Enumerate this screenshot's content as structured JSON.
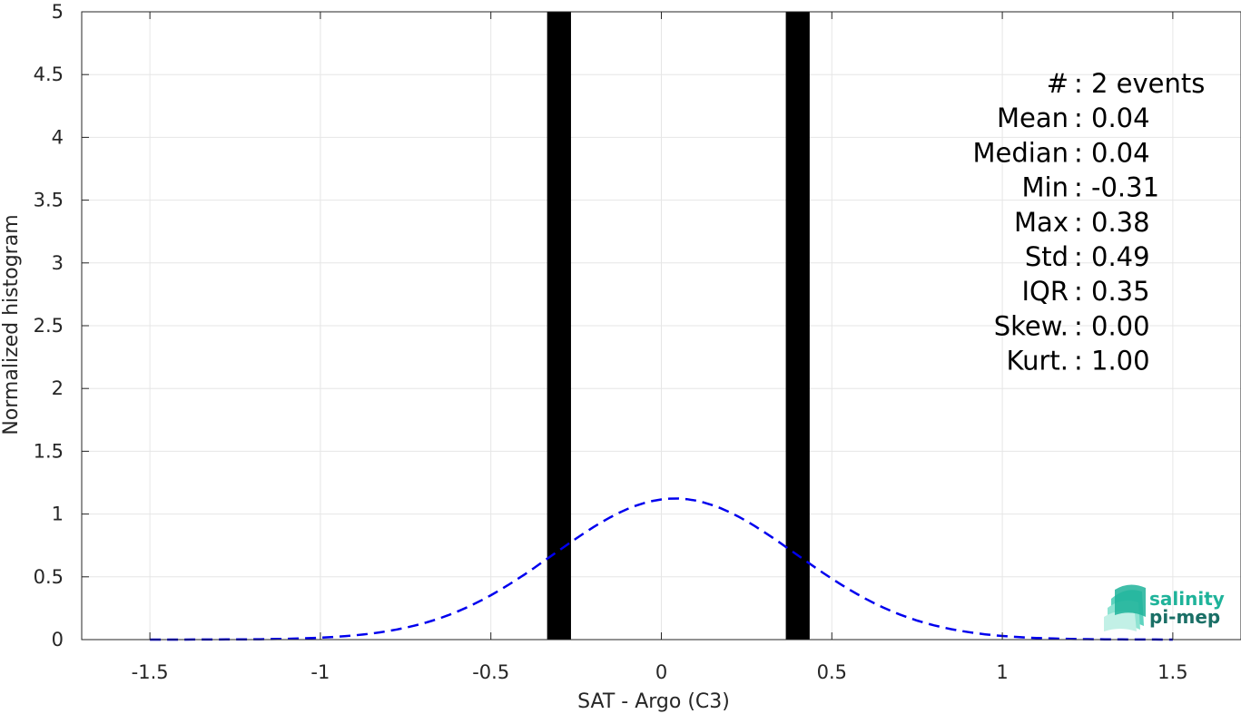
{
  "chart_data": {
    "type": "bar",
    "xlabel": "SAT - Argo (C3)",
    "ylabel": "Normalized histogram",
    "xlim": [
      -1.7,
      1.7
    ],
    "ylim": [
      0,
      5
    ],
    "xticks": [
      -1.5,
      -1,
      -0.5,
      0,
      0.5,
      1,
      1.5
    ],
    "xtick_labels": [
      "-1.5",
      "-1",
      "-0.5",
      "0",
      "0.5",
      "1",
      "1.5"
    ],
    "yticks": [
      0,
      0.5,
      1,
      1.5,
      2,
      2.5,
      3,
      3.5,
      4,
      4.5,
      5
    ],
    "ytick_labels": [
      "0",
      "0.5",
      "1",
      "1.5",
      "2",
      "2.5",
      "3",
      "3.5",
      "4",
      "4.5",
      "5"
    ],
    "grid": true,
    "bars": [
      {
        "x_start": -0.335,
        "x_end": -0.265,
        "value": 5
      },
      {
        "x_start": 0.365,
        "x_end": 0.435,
        "value": 5
      }
    ],
    "bar_color": "#000000",
    "fit_curve": {
      "style": "dashed",
      "color": "#0000ee",
      "mean": 0.04,
      "std": 0.355,
      "x_range": [
        -1.5,
        1.5
      ]
    },
    "stats": [
      "#  : 2 events",
      "Mean : 0.04",
      "Median : 0.04",
      "Min : -0.31",
      "Max : 0.38",
      "Std : 0.49",
      "IQR : 0.35",
      "Skew. : 0.00",
      "Kurt. : 1.00"
    ]
  },
  "logo": {
    "line1": "salinity",
    "line2": "pi-mep",
    "color1": "#1fb39a",
    "color2": "#1a6f66"
  }
}
